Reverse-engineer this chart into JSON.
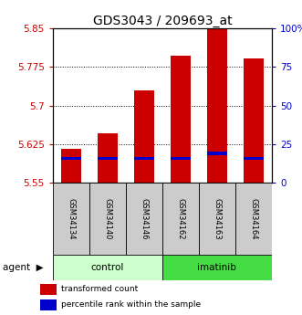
{
  "title": "GDS3043 / 209693_at",
  "categories": [
    "GSM34134",
    "GSM34140",
    "GSM34146",
    "GSM34162",
    "GSM34163",
    "GSM34164"
  ],
  "groups": [
    "control",
    "control",
    "control",
    "imatinib",
    "imatinib",
    "imatinib"
  ],
  "bar_values": [
    5.615,
    5.646,
    5.73,
    5.797,
    5.856,
    5.792
  ],
  "blue_values": [
    5.594,
    5.594,
    5.594,
    5.594,
    5.604,
    5.594
  ],
  "blue_heights": [
    0.006,
    0.006,
    0.006,
    0.006,
    0.006,
    0.006
  ],
  "ymin": 5.55,
  "ymax": 5.85,
  "yticks_left": [
    5.55,
    5.625,
    5.7,
    5.775,
    5.85
  ],
  "yticks_right": [
    0,
    25,
    50,
    75,
    100
  ],
  "yright_labels": [
    "0",
    "25",
    "50",
    "75",
    "100%"
  ],
  "bar_color": "#cc0000",
  "blue_color": "#0000cc",
  "bar_width": 0.55,
  "group_colors": {
    "control": "#ccffcc",
    "imatinib": "#44dd44"
  },
  "agent_label": "agent",
  "legend_items": [
    {
      "color": "#cc0000",
      "label": "transformed count"
    },
    {
      "color": "#0000cc",
      "label": "percentile rank within the sample"
    }
  ],
  "title_fontsize": 10,
  "tick_fontsize": 7.5,
  "ylabel_color_left": "#cc0000",
  "ylabel_color_right": "#0000cc",
  "plot_bg_color": "white",
  "tick_label_bg": "#cccccc",
  "fig_width": 3.31,
  "fig_height": 3.45
}
